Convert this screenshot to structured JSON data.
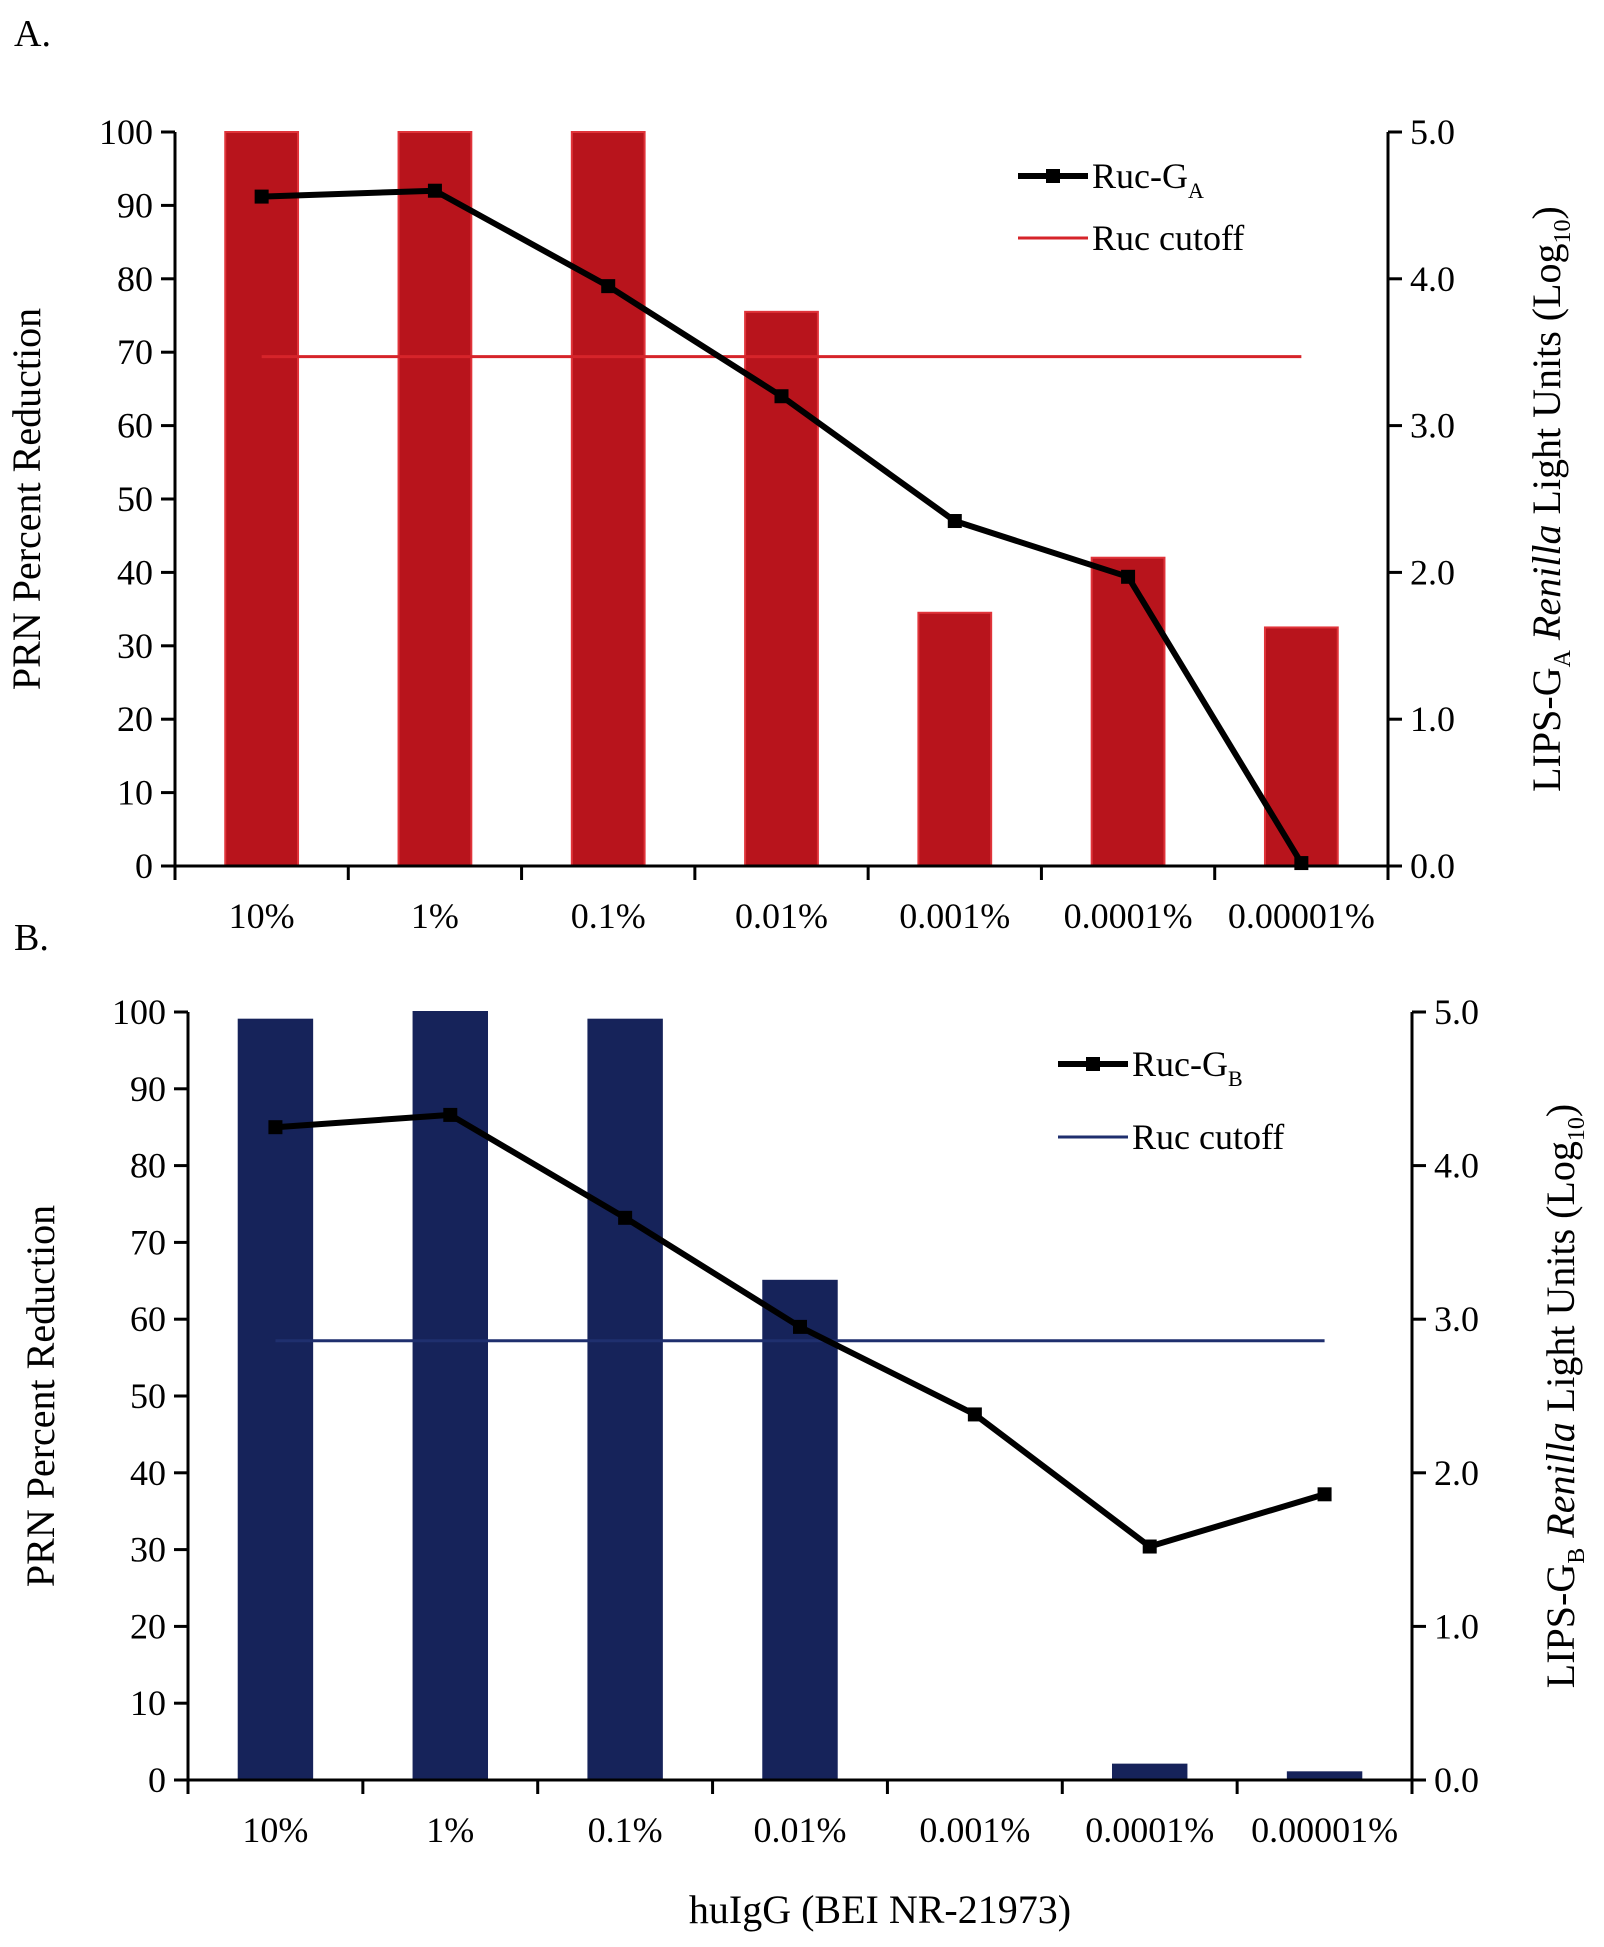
{
  "chart_data": [
    {
      "type": "bar",
      "panel_label": "A.",
      "categories": [
        "10%",
        "1%",
        "0.1%",
        "0.01%",
        "0.001%",
        "0.0001%",
        "0.00001%"
      ],
      "series": [
        {
          "name": "PRN Percent Reduction",
          "kind": "bar",
          "axis": "left",
          "color": "#b8141c",
          "values": [
            100,
            100,
            100,
            75.5,
            34.5,
            42,
            32.5
          ]
        },
        {
          "name": "Ruc-GA",
          "legend_main": "Ruc-G",
          "legend_sub": "A",
          "kind": "line",
          "axis": "right",
          "color": "#000000",
          "values": [
            4.56,
            4.6,
            3.95,
            3.2,
            2.35,
            1.97,
            0.02
          ]
        },
        {
          "name": "Ruc cutoff",
          "kind": "hline",
          "axis": "right",
          "color": "#d6242a",
          "value": 3.47
        }
      ],
      "ylabel": "PRN Percent Reduction",
      "ylim": [
        0,
        100
      ],
      "yticks": [
        0,
        10,
        20,
        30,
        40,
        50,
        60,
        70,
        80,
        90,
        100
      ],
      "y2label": {
        "prefix": "LIPS-G",
        "sub": "A",
        "italic": "Renilla",
        "middle": "Light Units (Log",
        "log_sub": "10",
        "suffix": ")"
      },
      "y2lim": [
        0,
        5
      ],
      "y2ticks": [
        "0.0",
        "1.0",
        "2.0",
        "3.0",
        "4.0",
        "5.0"
      ],
      "legend": [
        {
          "main": "Ruc-G",
          "sub": "A",
          "kind": "line"
        },
        {
          "main": "Ruc cutoff",
          "sub": "",
          "kind": "hline"
        }
      ]
    },
    {
      "type": "bar",
      "panel_label": "B.",
      "categories": [
        "10%",
        "1%",
        "0.1%",
        "0.01%",
        "0.001%",
        "0.0001%",
        "0.00001%"
      ],
      "series": [
        {
          "name": "PRN Percent Reduction",
          "kind": "bar",
          "axis": "left",
          "color": "#16235a",
          "values": [
            99,
            100,
            99,
            65,
            0,
            2,
            1
          ]
        },
        {
          "name": "Ruc-GB",
          "legend_main": "Ruc-G",
          "legend_sub": "B",
          "kind": "line",
          "axis": "right",
          "color": "#000000",
          "values": [
            4.25,
            4.33,
            3.66,
            2.95,
            2.38,
            1.52,
            1.86
          ]
        },
        {
          "name": "Ruc cutoff",
          "kind": "hline",
          "axis": "right",
          "color": "#1f2f6e",
          "value": 2.86
        }
      ],
      "ylabel": "PRN Percent Reduction",
      "ylim": [
        0,
        100
      ],
      "yticks": [
        0,
        10,
        20,
        30,
        40,
        50,
        60,
        70,
        80,
        90,
        100
      ],
      "y2label": {
        "prefix": "LIPS-G",
        "sub": "B",
        "italic": "Renilla",
        "middle": "Light Units (Log",
        "log_sub": "10",
        "suffix": ")"
      },
      "y2lim": [
        0,
        5
      ],
      "y2ticks": [
        "0.0",
        "1.0",
        "2.0",
        "3.0",
        "4.0",
        "5.0"
      ],
      "legend": [
        {
          "main": "Ruc-G",
          "sub": "B",
          "kind": "line"
        },
        {
          "main": "Ruc cutoff",
          "sub": "",
          "kind": "hline"
        }
      ],
      "xlabel": "huIgG (BEI NR-21973)"
    }
  ]
}
